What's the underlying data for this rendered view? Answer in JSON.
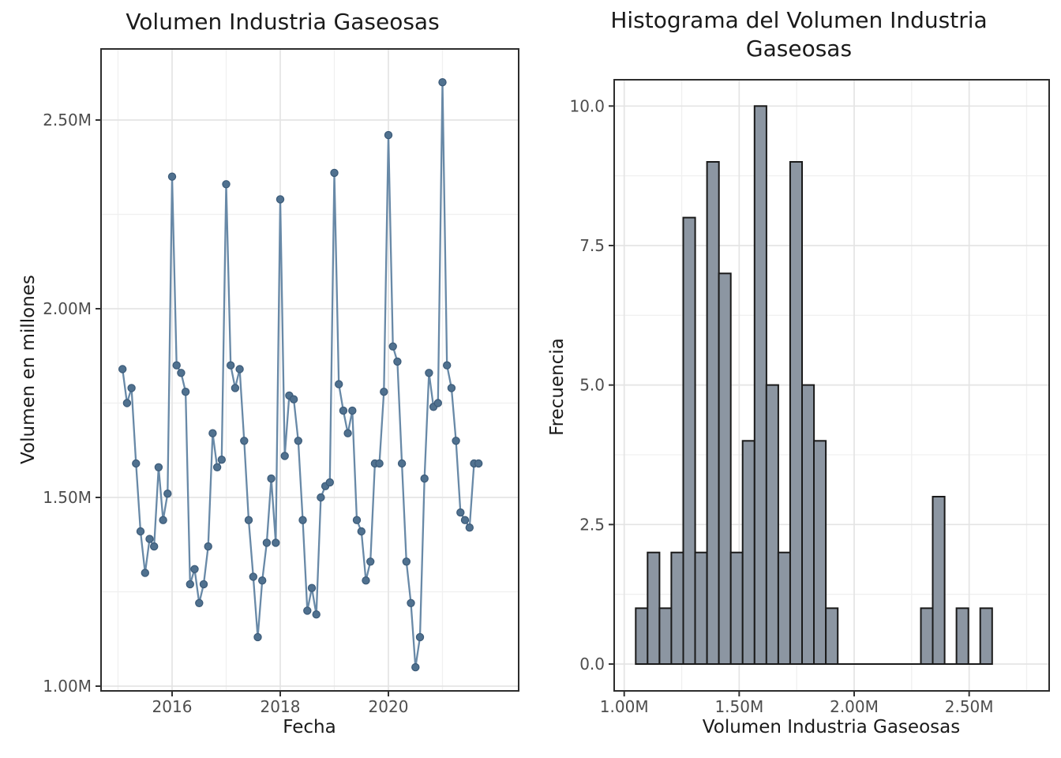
{
  "page": {
    "background": "#ffffff",
    "description": "Two-panel statistics figure: monthly volume time series and histogram of the same variable"
  },
  "chart_data": [
    {
      "type": "line",
      "title": "Volumen Industria Gaseosas",
      "xlabel": "Fecha",
      "ylabel": "Volumen en millones",
      "x_unit": "month",
      "start_date": "2015-01",
      "end_date": "2021-08",
      "values": [
        1.84,
        1.75,
        1.79,
        1.59,
        1.41,
        1.3,
        1.39,
        1.37,
        1.58,
        1.44,
        1.51,
        2.35,
        1.85,
        1.83,
        1.78,
        1.27,
        1.31,
        1.22,
        1.27,
        1.37,
        1.67,
        1.58,
        1.6,
        2.33,
        1.85,
        1.79,
        1.84,
        1.65,
        1.44,
        1.29,
        1.13,
        1.28,
        1.38,
        1.55,
        1.38,
        2.29,
        1.61,
        1.77,
        1.76,
        1.65,
        1.44,
        1.2,
        1.26,
        1.19,
        1.5,
        1.53,
        1.54,
        2.36,
        1.8,
        1.73,
        1.67,
        1.73,
        1.44,
        1.41,
        1.28,
        1.33,
        1.59,
        1.59,
        1.78,
        2.46,
        1.9,
        1.86,
        1.59,
        1.33,
        1.22,
        1.05,
        1.13,
        1.55,
        1.83,
        1.74,
        1.75,
        2.6,
        1.85,
        1.79,
        1.65,
        1.46,
        1.44,
        1.42,
        1.59,
        1.59
      ],
      "values_unit": "millions",
      "x_tick_labels": [
        "2016",
        "2018",
        "2020"
      ],
      "x_tick_years": [
        2016,
        2018,
        2020
      ],
      "x_minor_years": [
        2015,
        2017,
        2019,
        2021
      ],
      "y_tick_labels": [
        "1.00M",
        "1.50M",
        "2.00M",
        "2.50M"
      ],
      "y_tick_values": [
        1.0,
        1.5,
        2.0,
        2.5
      ],
      "y_minor_values": [
        1.25,
        1.75,
        2.25
      ],
      "ylim": [
        0.98,
        2.69
      ],
      "xlim_years": [
        2014.69,
        2022.41
      ],
      "grid": "on",
      "legend": "none",
      "line_color": "#6889a7",
      "point_color": "#50718f",
      "point_edge_color": "#3c5b79"
    },
    {
      "type": "histogram",
      "title": "Histograma del Volumen Industria Gaseosas",
      "xlabel": "Volumen Industria Gaseosas",
      "ylabel": "Frecuencia",
      "bin_start": 1.05,
      "bin_width": 0.051667,
      "counts": [
        1,
        2,
        1,
        2,
        8,
        2,
        9,
        7,
        2,
        4,
        10,
        5,
        2,
        9,
        5,
        4,
        1,
        0,
        0,
        0,
        0,
        0,
        0,
        0,
        1,
        3,
        0,
        1,
        0,
        1
      ],
      "x_tick_labels": [
        "1.00M",
        "1.50M",
        "2.00M",
        "2.50M"
      ],
      "x_tick_values": [
        1.0,
        1.5,
        2.0,
        2.5
      ],
      "x_minor_values": [
        1.25,
        1.75,
        2.25,
        2.75
      ],
      "y_tick_labels": [
        "0.0",
        "2.5",
        "5.0",
        "7.5",
        "10.0"
      ],
      "y_tick_values": [
        0,
        2.5,
        5,
        7.5,
        10
      ],
      "y_minor_values": [
        1.25,
        3.75,
        6.25,
        8.75
      ],
      "ylim": [
        -0.48,
        10.47
      ],
      "xlim": [
        0.96,
        2.85
      ],
      "grid": "on",
      "legend": "none",
      "bar_fill": "#8c96a2",
      "bar_stroke": "#1a1a1a"
    }
  ]
}
